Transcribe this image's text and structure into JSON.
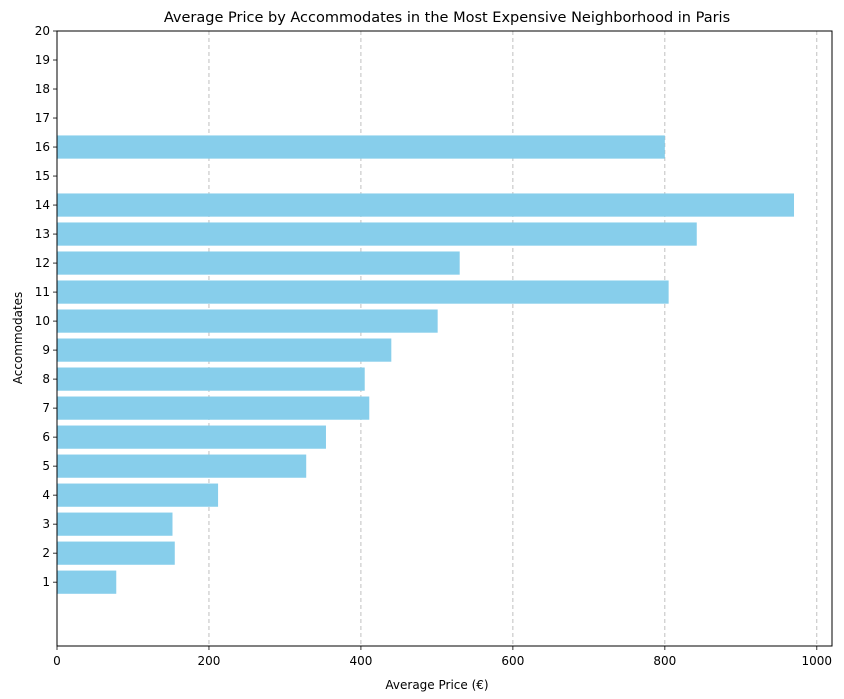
{
  "chart_data": {
    "type": "bar",
    "orientation": "horizontal",
    "title": "Average Price by Accommodates in the Most Expensive Neighborhood in Paris",
    "xlabel": "Average Price (€)",
    "ylabel": "Accommodates",
    "xlim": [
      0,
      1020
    ],
    "ylim": [
      -1.2,
      20
    ],
    "x_ticks": [
      0,
      200,
      400,
      600,
      800,
      1000
    ],
    "y_ticks": [
      1,
      2,
      3,
      4,
      5,
      6,
      7,
      8,
      9,
      10,
      11,
      12,
      13,
      14,
      15,
      16,
      17,
      18,
      19,
      20
    ],
    "grid": "x-dashed",
    "bar_color": "#87CEEB",
    "categories": [
      1,
      2,
      3,
      4,
      5,
      6,
      7,
      8,
      9,
      10,
      11,
      12,
      13,
      14,
      16
    ],
    "values": [
      78,
      155,
      152,
      212,
      328,
      354,
      411,
      405,
      440,
      501,
      805,
      530,
      842,
      970,
      800
    ]
  }
}
